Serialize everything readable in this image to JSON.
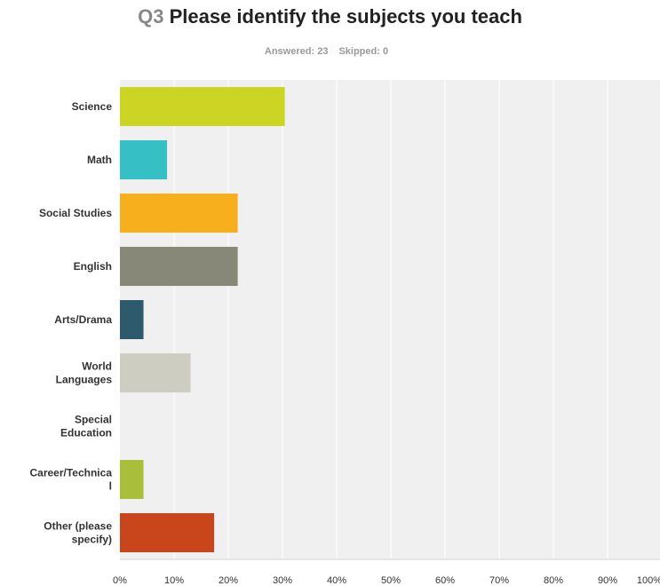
{
  "question": {
    "number": "Q3",
    "text": "Please identify the subjects you teach"
  },
  "stats": {
    "answered_label": "Answered:",
    "answered_value": "23",
    "skipped_label": "Skipped:",
    "skipped_value": "0"
  },
  "chart_data": {
    "type": "bar",
    "orientation": "horizontal",
    "categories": [
      [
        "Science"
      ],
      [
        "Math"
      ],
      [
        "Social Studies"
      ],
      [
        "English"
      ],
      [
        "Arts/Drama"
      ],
      [
        "World",
        "Languages"
      ],
      [
        "Special",
        "Education"
      ],
      [
        "Career/Technica",
        "l"
      ],
      [
        "Other (please",
        "specify)"
      ]
    ],
    "values": [
      30.43,
      8.7,
      21.74,
      21.74,
      4.35,
      13.04,
      0,
      4.35,
      17.39
    ],
    "colors": [
      "#cdd524",
      "#36bfc4",
      "#f7af1e",
      "#878878",
      "#2d5b6b",
      "#cdcdc1",
      "#bfbfbf",
      "#a9bf3b",
      "#c9451c"
    ],
    "xlim": [
      0,
      100
    ],
    "xticks": [
      "0%",
      "10%",
      "20%",
      "30%",
      "40%",
      "50%",
      "60%",
      "70%",
      "80%",
      "90%",
      "100%"
    ],
    "grid": true,
    "plot_background": "#f0f0f0",
    "grid_color": "#ffffff"
  }
}
